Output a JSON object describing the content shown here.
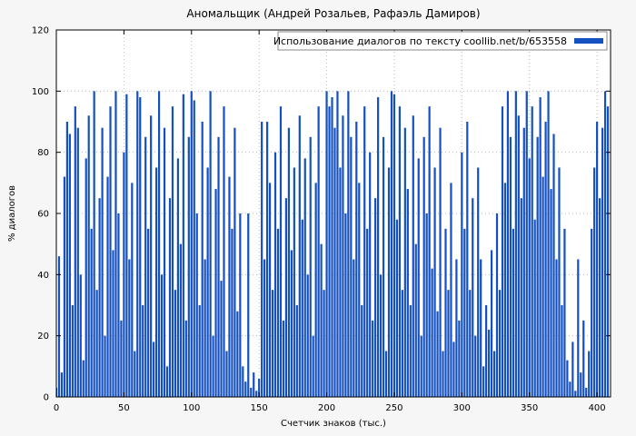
{
  "figure": {
    "background": "#f6f6f6",
    "plot_background": "#ffffff"
  },
  "chart_data": {
    "type": "bar",
    "title": "Аномальщик (Андрей Розальев, Рафаэль Дамиров)",
    "xlabel": "Счетчик знаков (тыс.)",
    "ylabel": "% диалогов",
    "legend": {
      "label": "Использование диалогов по тексту coollib.net/b/653558",
      "position": "top-right"
    },
    "bar_color": "#1450c0",
    "grid": true,
    "grid_color": "#b8b8b8",
    "xlim": [
      0,
      410
    ],
    "ylim": [
      0,
      120
    ],
    "x_ticks": [
      0,
      50,
      100,
      150,
      200,
      250,
      300,
      350,
      400
    ],
    "y_ticks": [
      0,
      20,
      40,
      60,
      80,
      100,
      120
    ],
    "x_start": 0,
    "x_step": 2,
    "values": [
      3,
      46,
      8,
      72,
      90,
      86,
      30,
      95,
      88,
      40,
      12,
      78,
      92,
      55,
      100,
      35,
      65,
      88,
      20,
      72,
      95,
      48,
      100,
      60,
      25,
      80,
      99,
      45,
      70,
      15,
      100,
      98,
      30,
      85,
      55,
      92,
      18,
      75,
      100,
      40,
      88,
      10,
      65,
      95,
      35,
      78,
      50,
      99,
      25,
      85,
      100,
      97,
      60,
      30,
      90,
      45,
      75,
      100,
      20,
      68,
      85,
      38,
      95,
      15,
      72,
      55,
      88,
      28,
      60,
      10,
      5,
      60,
      3,
      8,
      2,
      6,
      90,
      45,
      90,
      70,
      35,
      80,
      55,
      95,
      25,
      65,
      88,
      48,
      75,
      30,
      92,
      58,
      78,
      40,
      85,
      20,
      70,
      95,
      50,
      35,
      100,
      95,
      98,
      88,
      100,
      75,
      92,
      60,
      100,
      85,
      45,
      90,
      70,
      30,
      95,
      55,
      80,
      25,
      65,
      98,
      40,
      85,
      15,
      75,
      100,
      99,
      58,
      95,
      35,
      88,
      68,
      30,
      92,
      50,
      78,
      20,
      85,
      60,
      95,
      42,
      75,
      28,
      88,
      15,
      55,
      35,
      70,
      18,
      45,
      25,
      80,
      55,
      90,
      35,
      65,
      20,
      75,
      45,
      10,
      30,
      22,
      48,
      15,
      60,
      35,
      95,
      70,
      100,
      85,
      55,
      100,
      92,
      65,
      88,
      100,
      78,
      95,
      58,
      85,
      98,
      72,
      90,
      100,
      68,
      86,
      45,
      75,
      30,
      55,
      12,
      5,
      18,
      2,
      45,
      8,
      25,
      3,
      15,
      55,
      75,
      90,
      65,
      88,
      100,
      95
    ]
  }
}
